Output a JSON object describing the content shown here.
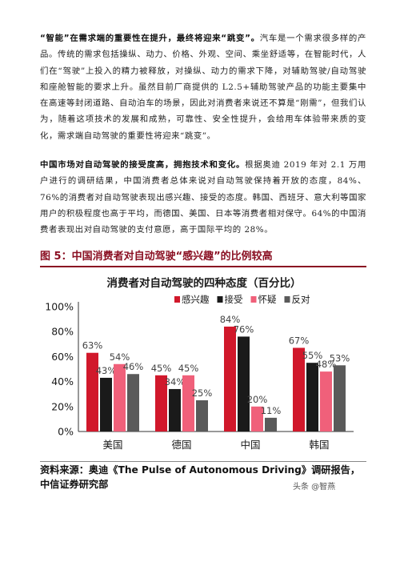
{
  "paragraph1": {
    "lead": "“智能”在需求端的重要性在提升，最终将迎来“跳变”。",
    "body": "汽车是一个需求很多样的产品。传统的需求包括操纵、动力、价格、外观、空间、乘坐舒适等，在智能时代，人们在“驾驶”上投入的精力被释放，对操纵、动力的需求下降，对辅助驾驶/自动驾驶和座舱智能的要求上升。虽然目前厂商提供的 L2.5+辅助驾驶产品的功能主要集中在高速等封闭道路、自动泊车的场景，因此对消费者来说还不算是“刚需”，但我们认为，随着这项技术的发展和成熟，可靠性、安全性提升，会给用车体验带来质的变化，需求端自动驾驶的重要性将迎来“跳变”。"
  },
  "paragraph2": {
    "lead": "中国市场对自动驾驶的接受度高，拥抱技术和变化。",
    "body": "根据奥迪 2019 年对 2.1 万用户进行的调研结果，中国消费者总体来说对自动驾驶保持着开放的态度，84%、76%的消费者对自动驾驶表现出感兴趣、接受的态度。韩国、西班牙、意大利等国家用户的积极程度也高于平均，而德国、美国、日本等消费者相对保守。64%的中国消费者表现出对自动驾驶的支付意愿，高于国际平均的 28%。"
  },
  "figure": {
    "title": "图 5：中国消费者对自动驾驶“感兴趣”的比例较高"
  },
  "chart_data": {
    "type": "bar",
    "title": "消费者对自动驾驶的四种态度（百分比）",
    "categories": [
      "美国",
      "德国",
      "中国",
      "韩国"
    ],
    "series": [
      {
        "name": "感兴趣",
        "color": "#d1182b",
        "values": [
          63,
          45,
          84,
          67
        ],
        "labels": [
          "63%",
          "45%",
          "84%",
          "67%"
        ]
      },
      {
        "name": "接受",
        "color": "#1a1a1a",
        "values": [
          43,
          34,
          76,
          55
        ],
        "labels": [
          "43%",
          "34%",
          "76%",
          "55%"
        ]
      },
      {
        "name": "怀疑",
        "color": "#f0607a",
        "values": [
          54,
          45,
          20,
          48
        ],
        "labels": [
          "54%",
          "45%",
          "20%",
          "48%"
        ]
      },
      {
        "name": "反对",
        "color": "#5a5a5a",
        "values": [
          46,
          25,
          11,
          53
        ],
        "labels": [
          "46%",
          "25%",
          "11%",
          "53%"
        ]
      }
    ],
    "yticks": [
      "0%",
      "20%",
      "40%",
      "60%",
      "80%",
      "100%"
    ],
    "ylim": [
      0,
      100
    ],
    "legend": "top",
    "grid": false
  },
  "source": {
    "text": "资料来源：奥迪《The Pulse of Autonomous Driving》调研报告，中信证券研究部"
  },
  "watermark": "头条 @智燕"
}
